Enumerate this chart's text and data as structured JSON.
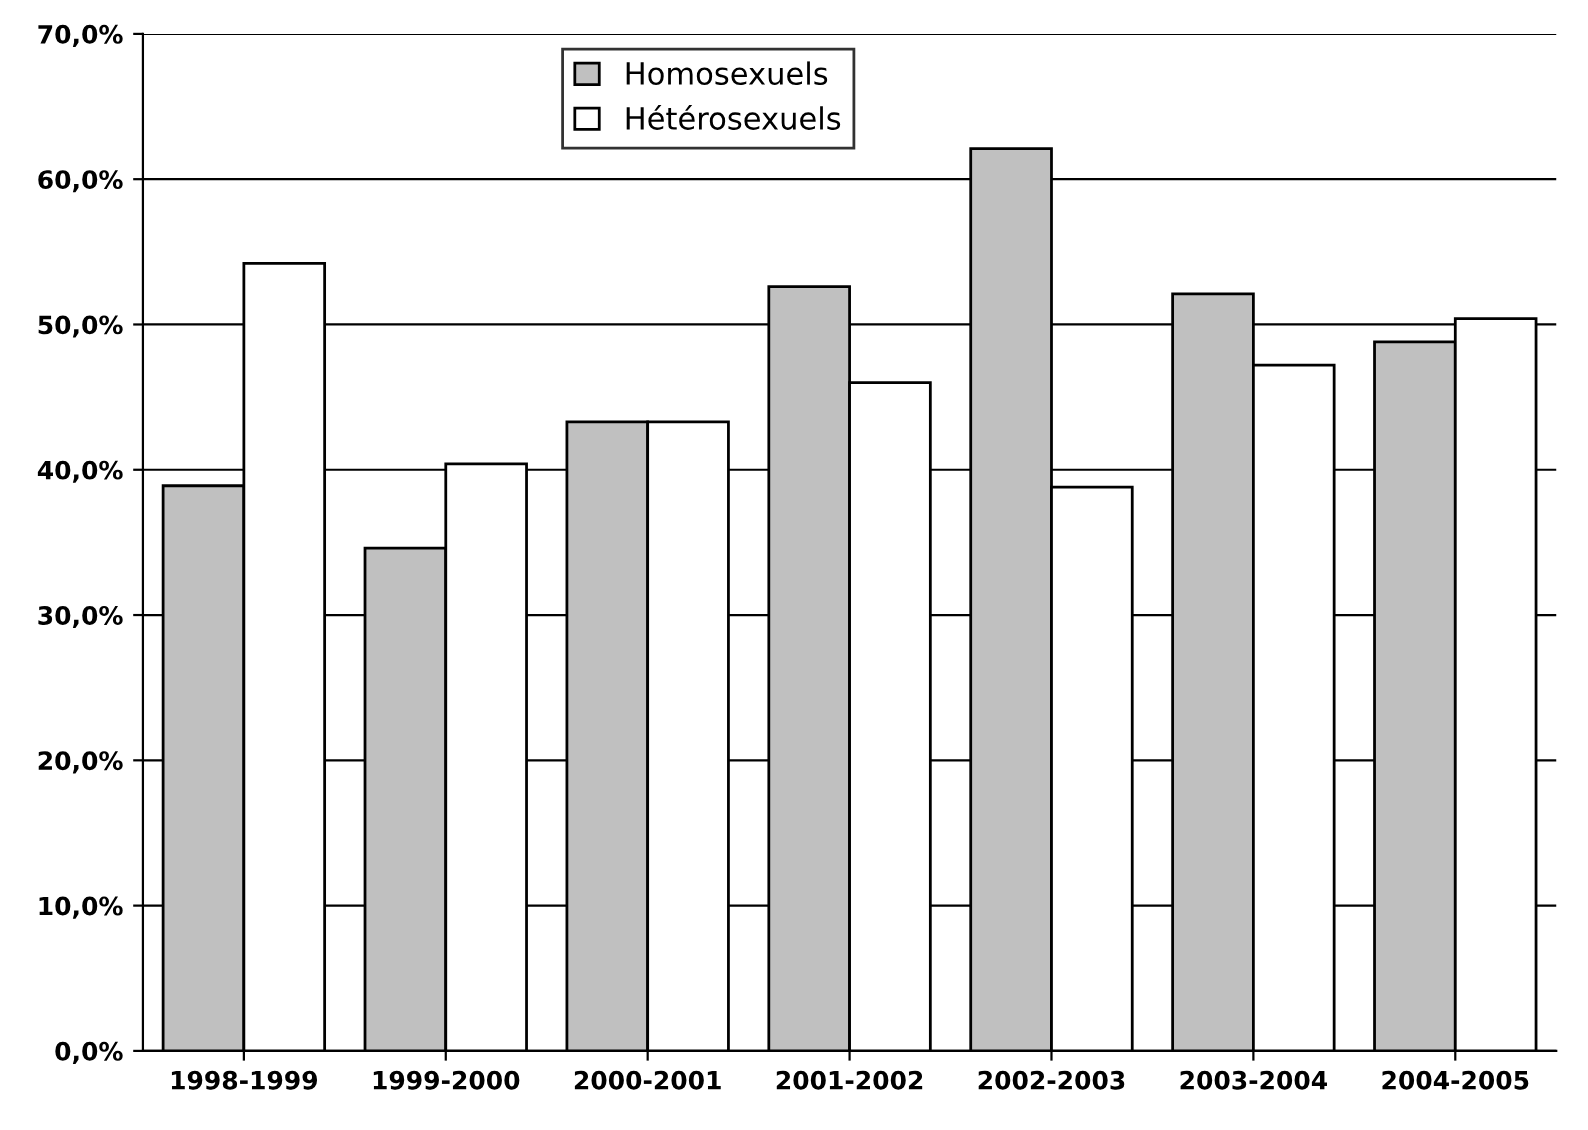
{
  "chart_data": {
    "type": "bar",
    "categories": [
      "1998-1999",
      "1999-2000",
      "2000-2001",
      "2001-2002",
      "2002-2003",
      "2003-2004",
      "2004-2005"
    ],
    "series": [
      {
        "name": "Homosexuels",
        "color": "#c0c0c0",
        "values": [
          38.9,
          34.6,
          43.3,
          52.6,
          62.1,
          52.1,
          48.8
        ]
      },
      {
        "name": "Hétérosexuels",
        "color": "#ffffff",
        "values": [
          54.2,
          40.4,
          43.3,
          46.0,
          38.8,
          47.2,
          50.4
        ]
      }
    ],
    "ylim": [
      0,
      70
    ],
    "yticks": [
      {
        "value": 0,
        "label": "0,0%"
      },
      {
        "value": 10,
        "label": "10,0%"
      },
      {
        "value": 20,
        "label": "20,0%"
      },
      {
        "value": 30,
        "label": "30,0%"
      },
      {
        "value": 40,
        "label": "40,0%"
      },
      {
        "value": 50,
        "label": "50,0%"
      },
      {
        "value": 60,
        "label": "60,0%"
      },
      {
        "value": 70,
        "label": "70,0%"
      }
    ],
    "grid": "y",
    "legend": "top"
  }
}
